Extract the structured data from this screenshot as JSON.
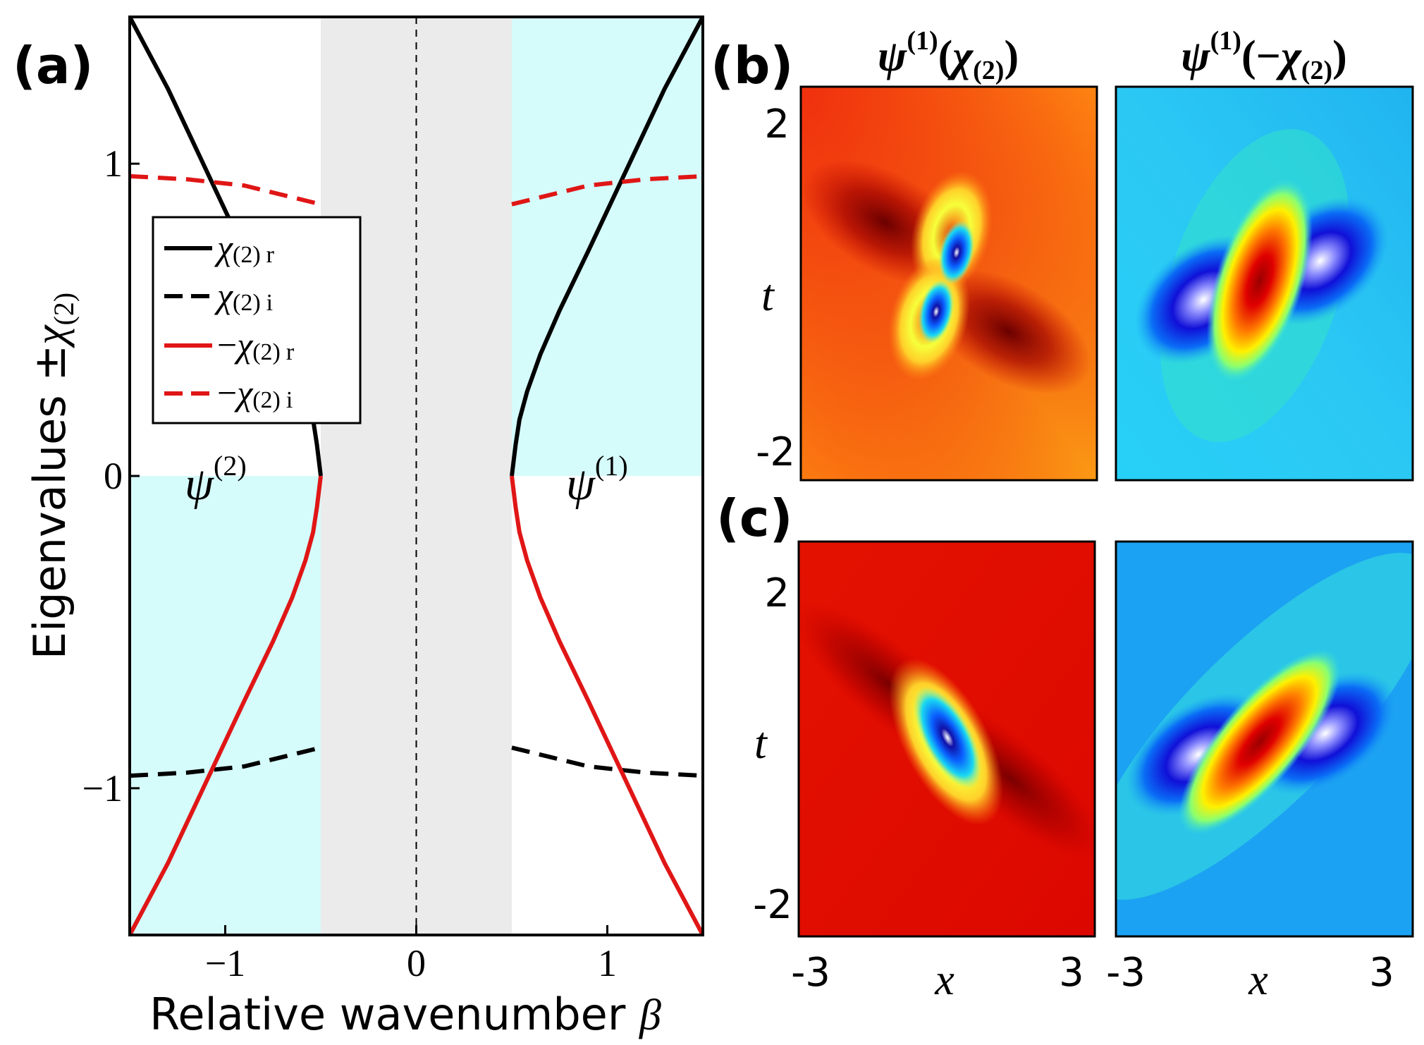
{
  "colors": {
    "cyan_region": "#d6fbfb",
    "gray_region": "#ebebeb",
    "black_curve": "#000000",
    "red_curve": "#e01616",
    "frame": "#000000"
  },
  "panel_labels": {
    "a": "(a)",
    "b": "(b)",
    "c": "(c)"
  },
  "chart_data": [
    {
      "type": "line",
      "panel": "(a)",
      "xlabel_text": "Relative wavenumber ",
      "xlabel_symbol": "β",
      "ylabel_text": "Eigenvalues ±",
      "ylabel_symbol": "χ",
      "ylabel_sub": "(2)",
      "xlim": [
        -1.5,
        1.5
      ],
      "ylim": [
        -1.47,
        1.47
      ],
      "xticks": [
        {
          "value": -1,
          "label": "−1"
        },
        {
          "value": 0,
          "label": "0"
        },
        {
          "value": 1,
          "label": "1"
        }
      ],
      "yticks": [
        {
          "value": 1,
          "label": "1"
        },
        {
          "value": 0,
          "label": "0"
        },
        {
          "value": -1,
          "label": "−1"
        }
      ],
      "gray_band": [
        -0.5,
        0.5
      ],
      "cyan_regions": [
        {
          "x": [
            0.5,
            1.5
          ],
          "y": [
            0,
            1.47
          ]
        },
        {
          "x": [
            -1.5,
            -0.5
          ],
          "y": [
            -1.47,
            0
          ]
        }
      ],
      "dashed_center_x": 0,
      "series": [
        {
          "name": "χ(2) r",
          "style": "solid",
          "color": "black",
          "x": [
            -1.5,
            -1.3,
            -1.1,
            -0.9,
            -0.75,
            -0.65,
            -0.58,
            -0.54,
            -0.52,
            -0.51,
            -0.5,
            0.5,
            0.51,
            0.52,
            0.54,
            0.58,
            0.65,
            0.75,
            0.9,
            1.1,
            1.3,
            1.5
          ],
          "y": [
            1.47,
            1.24,
            0.98,
            0.72,
            0.53,
            0.39,
            0.27,
            0.18,
            0.1,
            0.05,
            0,
            0,
            0.05,
            0.1,
            0.18,
            0.27,
            0.39,
            0.53,
            0.72,
            0.98,
            1.24,
            1.47
          ]
        },
        {
          "name": "χ(2) i",
          "style": "dashed",
          "color": "black",
          "x": [
            -1.5,
            -1.2,
            -0.9,
            -0.7,
            -0.5,
            0.5,
            0.7,
            0.9,
            1.2,
            1.5
          ],
          "y": [
            -0.96,
            -0.95,
            -0.93,
            -0.9,
            -0.87,
            -0.87,
            -0.9,
            -0.93,
            -0.95,
            -0.96
          ]
        },
        {
          "name": "−χ(2) r",
          "style": "solid",
          "color": "red",
          "x": [
            -1.5,
            -1.3,
            -1.1,
            -0.9,
            -0.75,
            -0.65,
            -0.58,
            -0.54,
            -0.52,
            -0.51,
            -0.5,
            0.5,
            0.51,
            0.52,
            0.54,
            0.58,
            0.65,
            0.75,
            0.9,
            1.1,
            1.3,
            1.5
          ],
          "y": [
            -1.47,
            -1.24,
            -0.98,
            -0.72,
            -0.53,
            -0.39,
            -0.27,
            -0.18,
            -0.1,
            -0.05,
            0,
            0,
            -0.05,
            -0.1,
            -0.18,
            -0.27,
            -0.39,
            -0.53,
            -0.72,
            -0.98,
            -1.24,
            -1.47
          ]
        },
        {
          "name": "−χ(2) i",
          "style": "dashed",
          "color": "red",
          "x": [
            -1.5,
            -1.2,
            -0.9,
            -0.7,
            -0.5,
            0.5,
            0.7,
            0.9,
            1.2,
            1.5
          ],
          "y": [
            0.96,
            0.95,
            0.93,
            0.9,
            0.87,
            0.87,
            0.9,
            0.93,
            0.95,
            0.96
          ]
        }
      ],
      "legend": {
        "placement": "upper-left",
        "entries": [
          {
            "prefix": "",
            "symbol": "χ",
            "sub": "(2)",
            "suffix": "r",
            "style": "solid",
            "color": "black"
          },
          {
            "prefix": "",
            "symbol": "χ",
            "sub": "(2)",
            "suffix": "i",
            "style": "dashed",
            "color": "black"
          },
          {
            "prefix": "−",
            "symbol": "χ",
            "sub": "(2)",
            "suffix": "r",
            "style": "solid",
            "color": "red"
          },
          {
            "prefix": "−",
            "symbol": "χ",
            "sub": "(2)",
            "suffix": "i",
            "style": "dashed",
            "color": "red"
          }
        ]
      },
      "annotations": [
        {
          "id": "psi2",
          "symbol": "ψ",
          "sup": "(2)"
        },
        {
          "id": "psi1",
          "symbol": "ψ",
          "sup": "(1)"
        }
      ]
    },
    {
      "type": "heatmap",
      "panels": [
        "(b)",
        "(c)"
      ],
      "column_titles": [
        {
          "symbol": "ψ",
          "sup": "(1)",
          "arg_open": "(",
          "arg_minus": "",
          "arg_symbol": "χ",
          "arg_sub": "(2)",
          "arg_close": ")"
        },
        {
          "symbol": "ψ",
          "sup": "(1)",
          "arg_open": "(",
          "arg_minus": "−",
          "arg_symbol": "χ",
          "arg_sub": "(2)",
          "arg_close": ")"
        }
      ],
      "xlabel": "x",
      "ylabel": "t",
      "xlim": [
        -3,
        3
      ],
      "ylim": [
        -2,
        2
      ],
      "xticks": [
        "-3",
        "3"
      ],
      "yticks": [
        "2",
        "-2"
      ],
      "colormap": "jet"
    }
  ]
}
